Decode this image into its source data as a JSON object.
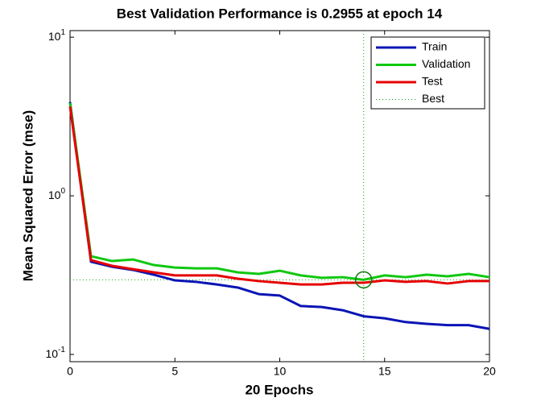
{
  "chart_data": {
    "type": "line",
    "title": "Best Validation Performance is 0.2955 at epoch 14",
    "xlabel": "20 Epochs",
    "ylabel": "Mean Squared Error  (mse)",
    "x": [
      0,
      1,
      2,
      3,
      4,
      5,
      6,
      7,
      8,
      9,
      10,
      11,
      12,
      13,
      14,
      15,
      16,
      17,
      18,
      19,
      20
    ],
    "series": [
      {
        "name": "Train",
        "color": "#0a14b4",
        "values": [
          3.9,
          0.384,
          0.357,
          0.341,
          0.318,
          0.293,
          0.287,
          0.276,
          0.264,
          0.24,
          0.235,
          0.202,
          0.199,
          0.19,
          0.174,
          0.169,
          0.16,
          0.156,
          0.153,
          0.153,
          0.145
        ]
      },
      {
        "name": "Validation",
        "color": "#10c810",
        "values": [
          3.84,
          0.416,
          0.388,
          0.397,
          0.366,
          0.353,
          0.349,
          0.349,
          0.329,
          0.322,
          0.337,
          0.315,
          0.304,
          0.307,
          0.2955,
          0.315,
          0.307,
          0.318,
          0.311,
          0.322,
          0.307
        ]
      },
      {
        "name": "Test",
        "color": "#e60000",
        "values": [
          3.66,
          0.393,
          0.362,
          0.345,
          0.329,
          0.315,
          0.315,
          0.315,
          0.3,
          0.29,
          0.283,
          0.276,
          0.276,
          0.283,
          0.283,
          0.293,
          0.287,
          0.29,
          0.28,
          0.29,
          0.29
        ]
      }
    ],
    "best": {
      "name": "Best",
      "color": "#10a010",
      "x": 14,
      "y": 0.2955
    },
    "xlim": [
      0,
      20
    ],
    "xticks": [
      0,
      5,
      10,
      15,
      20
    ],
    "ylim": [
      0.09,
      11
    ],
    "yticks": [
      {
        "value": 0.1,
        "label": "10^-1"
      },
      {
        "value": 1,
        "label": "10^0"
      },
      {
        "value": 10,
        "label": "10^1"
      }
    ],
    "ylog": true,
    "legend": "upper right"
  }
}
